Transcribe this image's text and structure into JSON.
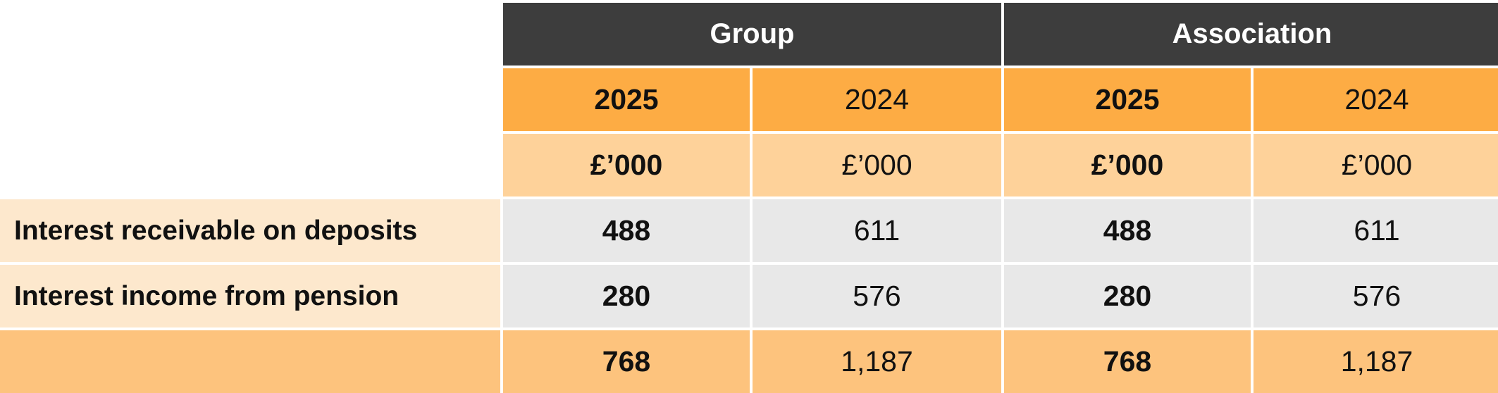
{
  "table": {
    "groups": [
      "Group",
      "Association"
    ],
    "years": [
      "2025",
      "2024",
      "2025",
      "2024"
    ],
    "units": [
      "£’000",
      "£’000",
      "£’000",
      "£’000"
    ],
    "rows": [
      {
        "label": "Interest receivable on deposits",
        "values": [
          "488",
          "611",
          "488",
          "611"
        ]
      },
      {
        "label": "Interest income from pension",
        "values": [
          "280",
          "576",
          "280",
          "576"
        ]
      }
    ],
    "total": {
      "label": "",
      "values": [
        "768",
        "1,187",
        "768",
        "1,187"
      ]
    }
  },
  "colors": {
    "group_header": "#3d3d3d",
    "year_header": "#fdac44",
    "unit_header": "#fed29a",
    "row_label": "#fde8cd",
    "row_value": "#e8e8e8",
    "total_row": "#fdc37d"
  }
}
